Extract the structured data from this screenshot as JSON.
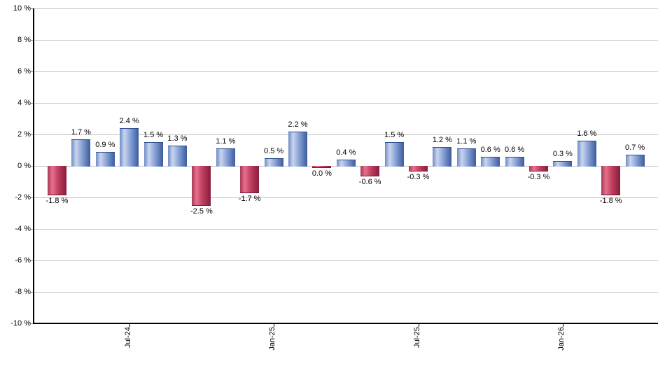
{
  "chart_data": {
    "type": "bar",
    "title": "",
    "xlabel": "",
    "ylabel": "",
    "grid": true,
    "legend": null,
    "ylim": [
      -10,
      10
    ],
    "y_tick_step": 2,
    "y_tick_labels": [
      "10 %",
      "8 %",
      "6 %",
      "4 %",
      "2 %",
      "0 %",
      "-2 %",
      "-4 %",
      "-6 %",
      "-8 %",
      "-10 %"
    ],
    "x_tick_labels": [
      {
        "label": "Jul-24",
        "bar_index": 3
      },
      {
        "label": "Jan-25",
        "bar_index": 9
      },
      {
        "label": "Jul-25",
        "bar_index": 15
      },
      {
        "label": "Jan-26",
        "bar_index": 21
      }
    ],
    "values": [
      -1.8,
      1.7,
      0.9,
      2.4,
      1.5,
      1.3,
      -2.5,
      1.1,
      -1.7,
      0.5,
      2.2,
      0.0,
      0.4,
      -0.6,
      1.5,
      -0.3,
      1.2,
      1.1,
      0.6,
      0.6,
      -0.3,
      0.3,
      1.6,
      -1.8,
      0.7
    ],
    "bar_labels": [
      "-1.8 %",
      "1.7 %",
      "0.9 %",
      "2.4 %",
      "1.5 %",
      "1.3 %",
      "-2.5 %",
      "1.1 %",
      "-1.7 %",
      "0.5 %",
      "2.2 %",
      "0.0 %",
      "0.4 %",
      "-0.6 %",
      "1.5 %",
      "-0.3 %",
      "1.2 %",
      "1.1 %",
      "0.6 %",
      "0.6 %",
      "-0.3 %",
      "0.3 %",
      "1.6 %",
      "-1.8 %",
      "0.7 %"
    ],
    "colors": {
      "positive_gradient": [
        "#6e8cc6",
        "#c9d5ef",
        "#8aa4d6",
        "#3b5b9d"
      ],
      "positive_stops_pct": [
        0,
        25,
        55,
        100
      ],
      "negative_gradient": [
        "#a43a56",
        "#e8718c",
        "#c04060",
        "#871c3c"
      ],
      "negative_stops_pct": [
        0,
        25,
        55,
        100
      ],
      "gridline": "#c6c6c6",
      "axis": "#000000",
      "label_text": "#000000",
      "background": "#ffffff"
    }
  }
}
